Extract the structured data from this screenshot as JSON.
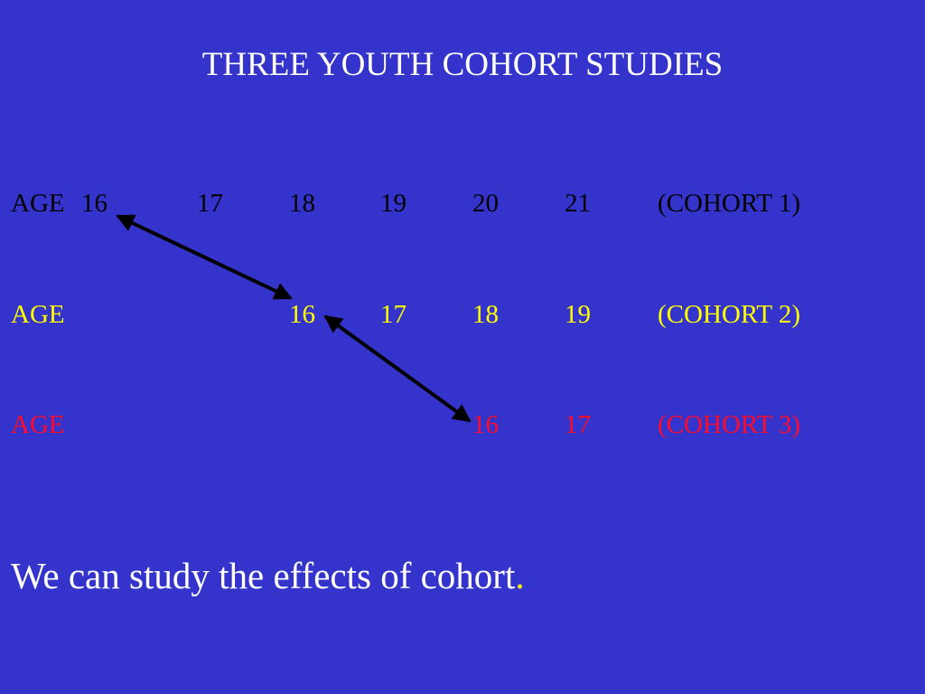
{
  "title": "THREE  YOUTH COHORT STUDIES",
  "rows": [
    {
      "label": "AGE",
      "ages": [
        16,
        17,
        18,
        19,
        20,
        21
      ],
      "cohort": "(COHORT 1)"
    },
    {
      "label": "AGE",
      "ages": [
        16,
        17,
        18,
        19
      ],
      "cohort": "(COHORT 2)"
    },
    {
      "label": "AGE",
      "ages": [
        16,
        17
      ],
      "cohort": "(COHORT 3)"
    }
  ],
  "footer": {
    "text": "We can study the effects of cohort",
    "period": "."
  }
}
